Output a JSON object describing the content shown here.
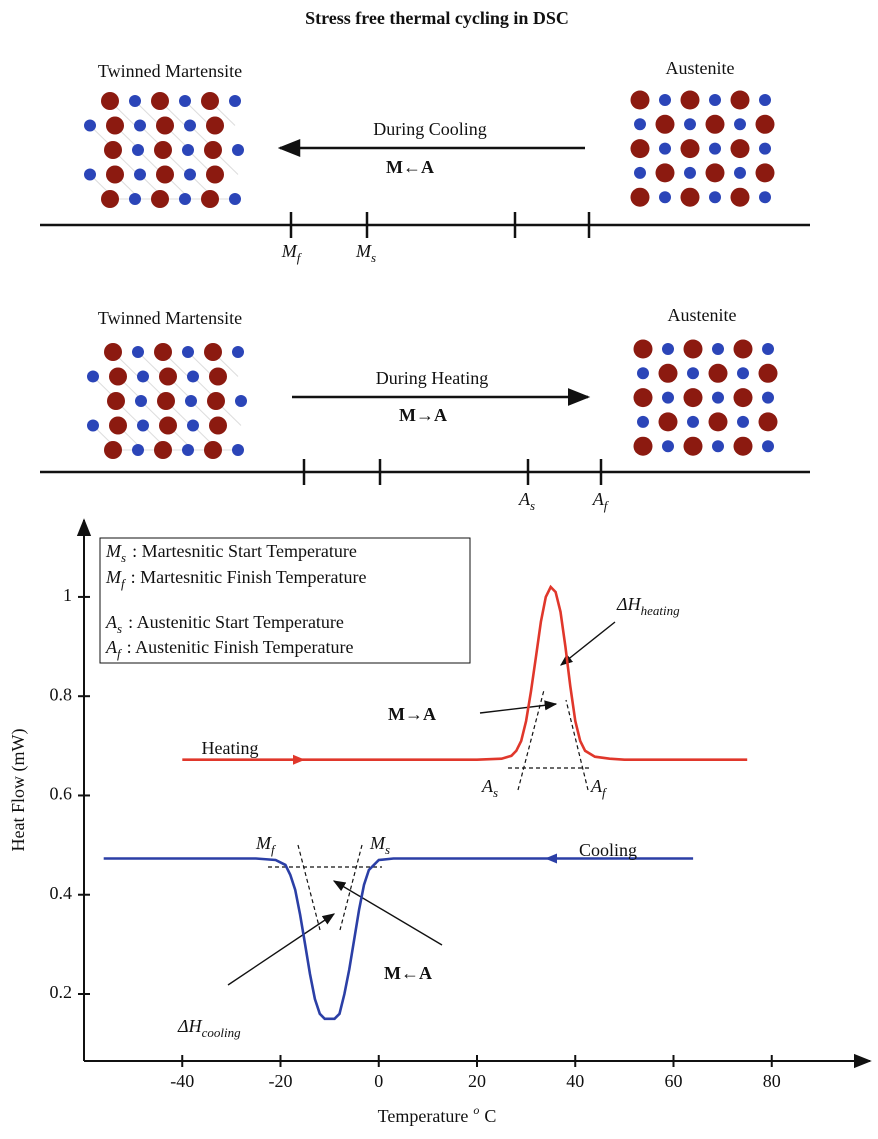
{
  "header": {
    "title": "Stress free thermal cycling in DSC"
  },
  "cooling_panel": {
    "left_label": "Twinned Martensite",
    "right_label": "Austenite",
    "arrow_label": "During Cooling",
    "reaction": "M←A",
    "ticks": [
      {
        "symbol": "M",
        "sub": "f"
      },
      {
        "symbol": "M",
        "sub": "s"
      }
    ]
  },
  "heating_panel": {
    "left_label": "Twinned Martensite",
    "right_label": "Austenite",
    "arrow_label": "During Heating",
    "reaction": "M→A",
    "ticks": [
      {
        "symbol": "A",
        "sub": "s"
      },
      {
        "symbol": "A",
        "sub": "f"
      }
    ]
  },
  "chart_data": {
    "type": "line",
    "xlabel": {
      "text": "Temperature",
      "sup": "o",
      "unit": "C"
    },
    "ylabel": "Heat Flow (mW)",
    "xlim": [
      -60,
      100
    ],
    "ylim": [
      0.065,
      1.155
    ],
    "xticks": [
      -40,
      -20,
      0,
      20,
      40,
      60,
      80
    ],
    "yticks": [
      0.2,
      0.4,
      0.6,
      0.8,
      1
    ],
    "series": [
      {
        "name": "Heating",
        "color": "#e0372b",
        "x": [
          -40,
          20,
          25,
          27,
          28,
          29,
          30,
          31,
          32,
          33,
          34,
          35,
          36,
          37,
          38,
          39,
          40,
          41,
          42,
          44,
          47,
          50,
          75
        ],
        "values": [
          0.672,
          0.672,
          0.674,
          0.68,
          0.69,
          0.71,
          0.75,
          0.81,
          0.88,
          0.95,
          1.0,
          1.02,
          1.01,
          0.97,
          0.9,
          0.82,
          0.75,
          0.71,
          0.69,
          0.678,
          0.674,
          0.672,
          0.672
        ]
      },
      {
        "name": "Cooling",
        "color": "#2b3fa6",
        "x": [
          -56,
          -25,
          -21,
          -19,
          -18,
          -17,
          -16,
          -15,
          -14,
          -13,
          -12,
          -11,
          -9,
          -8,
          -7,
          -6,
          -5,
          -4,
          -3,
          -2,
          0,
          3,
          64
        ],
        "values": [
          0.473,
          0.473,
          0.47,
          0.46,
          0.44,
          0.41,
          0.36,
          0.3,
          0.24,
          0.19,
          0.16,
          0.15,
          0.15,
          0.16,
          0.2,
          0.25,
          0.31,
          0.37,
          0.42,
          0.45,
          0.47,
          0.473,
          0.473
        ]
      }
    ],
    "legend_box": [
      {
        "symbol": "M",
        "sub": "s",
        "text": ": Martesnitic Start Temperature"
      },
      {
        "symbol": "M",
        "sub": "f",
        "text": ": Martesnitic Finish Temperature"
      },
      {
        "symbol": "A",
        "sub": "s",
        "text": ": Austenitic Start Temperature"
      },
      {
        "symbol": "A",
        "sub": "f",
        "text": ": Austenitic Finish Temperature"
      }
    ],
    "annotations": [
      {
        "text": "ΔH",
        "sub": "heating"
      },
      {
        "text": "M→A"
      },
      {
        "text": "A",
        "sub": "s"
      },
      {
        "text": "A",
        "sub": "f"
      },
      {
        "text": "M",
        "sub": "f"
      },
      {
        "text": "M",
        "sub": "s"
      },
      {
        "text": "ΔH",
        "sub": "cooling"
      },
      {
        "text": "M←A"
      }
    ]
  }
}
